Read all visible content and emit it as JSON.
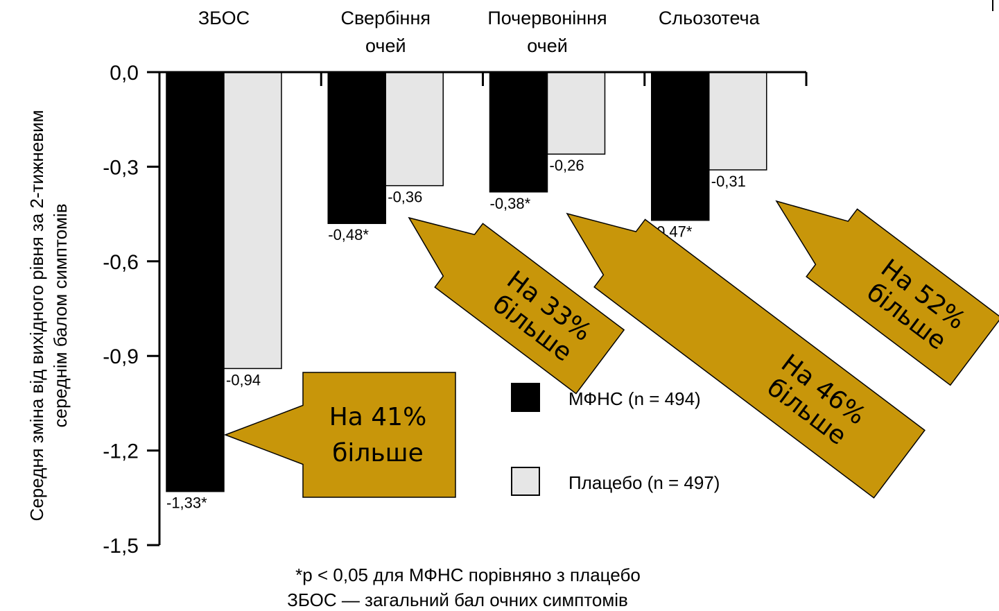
{
  "chart_data": {
    "type": "bar",
    "categories": [
      "ЗБОС",
      "Свербіння очей",
      "Почервоніння очей",
      "Сльозотеча"
    ],
    "category_lines": [
      [
        "ЗБОС"
      ],
      [
        "Свербіння",
        "очей"
      ],
      [
        "Почервоніння",
        "очей"
      ],
      [
        "Сльозотеча"
      ]
    ],
    "series": [
      {
        "name": "МФНС (n = 494)",
        "color": "#000000",
        "values": [
          -1.33,
          -0.48,
          -0.38,
          -0.47
        ],
        "labels": [
          "-1,33*",
          "-0,48*",
          "-0,38*",
          "-0,47*"
        ]
      },
      {
        "name": "Плацебо (n = 497)",
        "color": "#e6e6e6",
        "values": [
          -0.94,
          -0.36,
          -0.26,
          -0.31
        ],
        "labels": [
          "-0,94",
          "-0,36",
          "-0,26",
          "-0,31"
        ]
      }
    ],
    "ylabel_lines": [
      "Середня зміна від вихідного рівня за 2-тижневим",
      "середнім балом симптомів"
    ],
    "ylim": [
      -1.5,
      0.0
    ],
    "yticks": [
      0.0,
      -0.3,
      -0.6,
      -0.9,
      -1.2,
      -1.5
    ],
    "ytick_labels": [
      "0,0",
      "-0,3",
      "-0,6",
      "-0,9",
      "-1,2",
      "-1,5"
    ],
    "legend_position": "right",
    "grid": false,
    "footnotes": [
      "*р < 0,05 для МФНС порівняно з плацебо",
      "ЗБОС — загальний бал очних симптомів"
    ],
    "annotations": [
      {
        "lines": [
          "На 41%",
          "більше"
        ],
        "color": "#c8960a"
      },
      {
        "lines": [
          "На 33%",
          "більше"
        ],
        "color": "#c8960a"
      },
      {
        "lines": [
          "На 46%",
          "більше"
        ],
        "color": "#c8960a"
      },
      {
        "lines": [
          "На 52%",
          "більше"
        ],
        "color": "#c8960a"
      }
    ]
  }
}
